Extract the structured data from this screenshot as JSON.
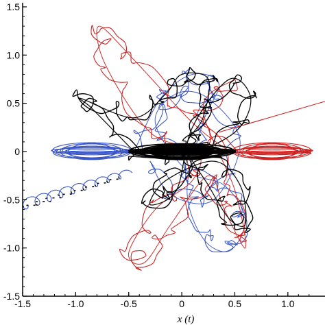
{
  "chart_data": {
    "type": "line",
    "title": "",
    "xlabel": "x (t)",
    "ylabel": "",
    "xlim": [
      -1.5,
      1.35
    ],
    "ylim": [
      -1.5,
      1.5
    ],
    "xticks": [
      "-1.5",
      "-1.0",
      "-0.5",
      "0",
      "0.5",
      "1.0"
    ],
    "yticks": [
      "1.5",
      "1.0",
      "0.5",
      "0",
      "-0.5",
      "-1.0",
      "-1.5"
    ],
    "grid": false,
    "legend": "none",
    "series": [
      {
        "color": "#3a55c4",
        "description_points": {
          "lobe_loops": {
            "center": [
              -0.85,
              0.0
            ],
            "rx": 0.38,
            "ry": 0.07,
            "count": 10
          },
          "spiral_tail": {
            "from": [
              -0.5,
              -0.22
            ],
            "to": [
              -1.5,
              -0.55
            ],
            "loops": 9
          },
          "trajectory": [
            [
              -0.45,
              0.0
            ],
            [
              -0.2,
              0.55
            ],
            [
              0.1,
              0.8
            ],
            [
              0.35,
              0.7
            ],
            [
              0.2,
              0.3
            ],
            [
              0.05,
              -0.4
            ],
            [
              0.2,
              -0.9
            ],
            [
              0.45,
              -1.03
            ],
            [
              0.6,
              -0.7
            ],
            [
              0.4,
              -0.35
            ],
            [
              0.05,
              -0.2
            ],
            [
              -0.25,
              0.3
            ],
            [
              -0.05,
              0.6
            ],
            [
              0.25,
              0.55
            ],
            [
              0.55,
              0.1
            ],
            [
              0.3,
              -0.5
            ],
            [
              -0.1,
              -0.45
            ],
            [
              -0.3,
              -0.1
            ]
          ]
        }
      },
      {
        "color": "#cc2222",
        "description_points": {
          "lobe_loops": {
            "center": [
              0.85,
              0.0
            ],
            "rx": 0.38,
            "ry": 0.07,
            "count": 10
          },
          "outgoing_line": {
            "from": [
              0.35,
              0.2
            ],
            "to": [
              1.35,
              0.52
            ]
          },
          "trajectory": [
            [
              0.45,
              0.0
            ],
            [
              0.1,
              0.3
            ],
            [
              -0.45,
              0.95
            ],
            [
              -0.78,
              1.3
            ],
            [
              -0.72,
              0.9
            ],
            [
              -0.3,
              0.2
            ],
            [
              0.15,
              0.0
            ],
            [
              0.1,
              -0.3
            ],
            [
              -0.25,
              -0.6
            ],
            [
              -0.5,
              -1.05
            ],
            [
              -0.35,
              -1.15
            ],
            [
              -0.1,
              -0.75
            ],
            [
              0.25,
              -0.25
            ],
            [
              0.4,
              -0.6
            ],
            [
              0.6,
              -1.0
            ],
            [
              0.5,
              -0.4
            ],
            [
              0.2,
              0.45
            ],
            [
              0.5,
              0.75
            ]
          ]
        }
      },
      {
        "color": "#000000",
        "description_points": {
          "central_dense": {
            "center": [
              0.0,
              0.0
            ],
            "rx": 0.5,
            "ry": 0.06,
            "count": 14
          },
          "trajectory": [
            [
              -0.45,
              0.0
            ],
            [
              -0.85,
              0.45
            ],
            [
              -0.95,
              0.55
            ],
            [
              -0.45,
              0.35
            ],
            [
              -0.15,
              0.6
            ],
            [
              0.0,
              0.8
            ],
            [
              0.25,
              0.75
            ],
            [
              0.2,
              0.35
            ],
            [
              0.05,
              0.05
            ],
            [
              0.25,
              -0.35
            ],
            [
              0.45,
              -0.7
            ],
            [
              0.6,
              -0.75
            ],
            [
              0.55,
              -0.35
            ],
            [
              0.3,
              -0.1
            ],
            [
              -0.15,
              -0.3
            ],
            [
              -0.3,
              -0.55
            ],
            [
              -0.05,
              -0.4
            ],
            [
              0.1,
              0.25
            ],
            [
              0.45,
              0.75
            ],
            [
              0.65,
              0.55
            ],
            [
              0.5,
              0.2
            ],
            [
              0.0,
              -0.05
            ],
            [
              -0.5,
              -0.05
            ]
          ]
        }
      }
    ]
  }
}
